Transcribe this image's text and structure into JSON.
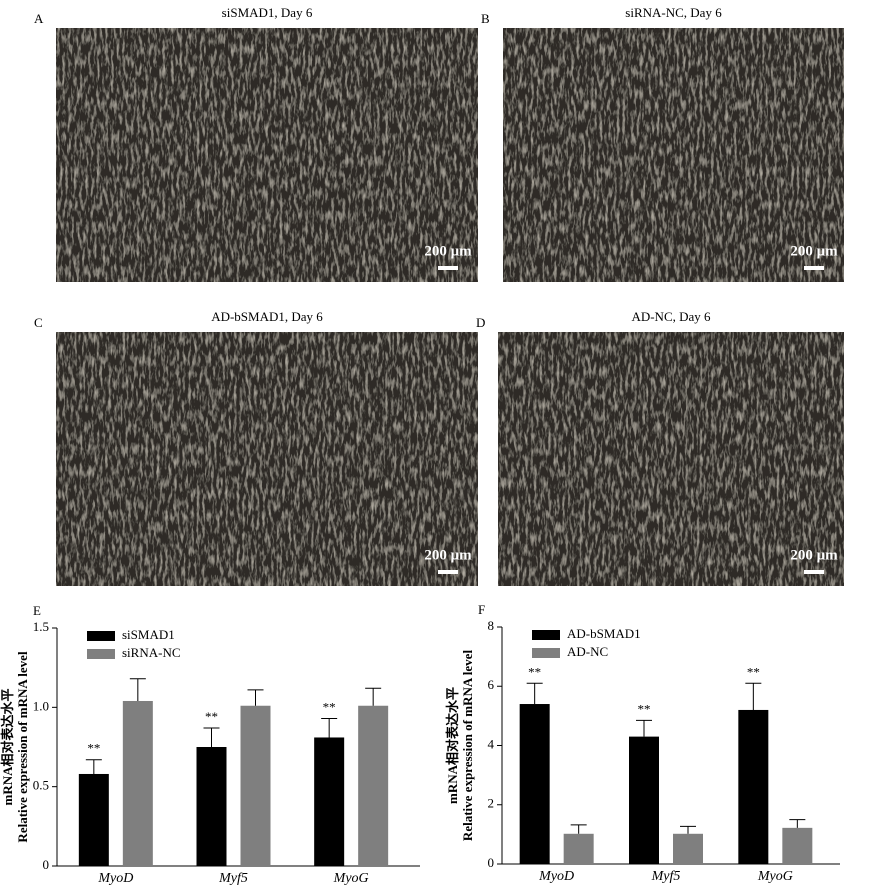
{
  "panels": [
    {
      "label": "A",
      "title": "siSMAD1, Day 6",
      "scale_label": "200 μm"
    },
    {
      "label": "B",
      "title": "siRNA-NC, Day 6",
      "scale_label": "200 μm"
    },
    {
      "label": "C",
      "title": "AD-bSMAD1, Day 6",
      "scale_label": "200 μm"
    },
    {
      "label": "D",
      "title": "AD-NC, Day 6",
      "scale_label": "200 μm"
    }
  ],
  "chart_data": [
    {
      "type": "bar",
      "panel_label": "E",
      "ylabel_cn": "mRNA相对表达水平",
      "ylabel": "Relative expression of mRNA level",
      "categories": [
        "MyoD",
        "Myf5",
        "MyoG"
      ],
      "series": [
        {
          "name": "siSMAD1",
          "color": "#000000",
          "values": [
            0.58,
            0.75,
            0.81
          ],
          "errors": [
            0.09,
            0.12,
            0.12
          ],
          "significance": [
            "**",
            "**",
            "**"
          ]
        },
        {
          "name": "siRNA-NC",
          "color": "#7f7f7f",
          "values": [
            1.04,
            1.01,
            1.01
          ],
          "errors": [
            0.14,
            0.1,
            0.11
          ]
        }
      ],
      "ylim": [
        0,
        1.5
      ],
      "yticks": [
        0,
        0.5,
        {
          "value": 1,
          "label": "1.0"
        },
        1.5
      ]
    },
    {
      "type": "bar",
      "panel_label": "F",
      "ylabel_cn": "mRNA相对表达水平",
      "ylabel": "Relative expression of mRNA level",
      "categories": [
        "MyoD",
        "Myf5",
        "MyoG"
      ],
      "series": [
        {
          "name": "AD-bSMAD1",
          "color": "#000000",
          "values": [
            5.4,
            4.3,
            5.2
          ],
          "errors": [
            0.7,
            0.55,
            0.9
          ],
          "significance": [
            "**",
            "**",
            "**"
          ]
        },
        {
          "name": "AD-NC",
          "color": "#7f7f7f",
          "values": [
            1.02,
            1.02,
            1.22
          ],
          "errors": [
            0.3,
            0.25,
            0.28
          ]
        }
      ],
      "ylim": [
        0,
        8
      ],
      "yticks": [
        0,
        2,
        4,
        6,
        8
      ]
    }
  ]
}
